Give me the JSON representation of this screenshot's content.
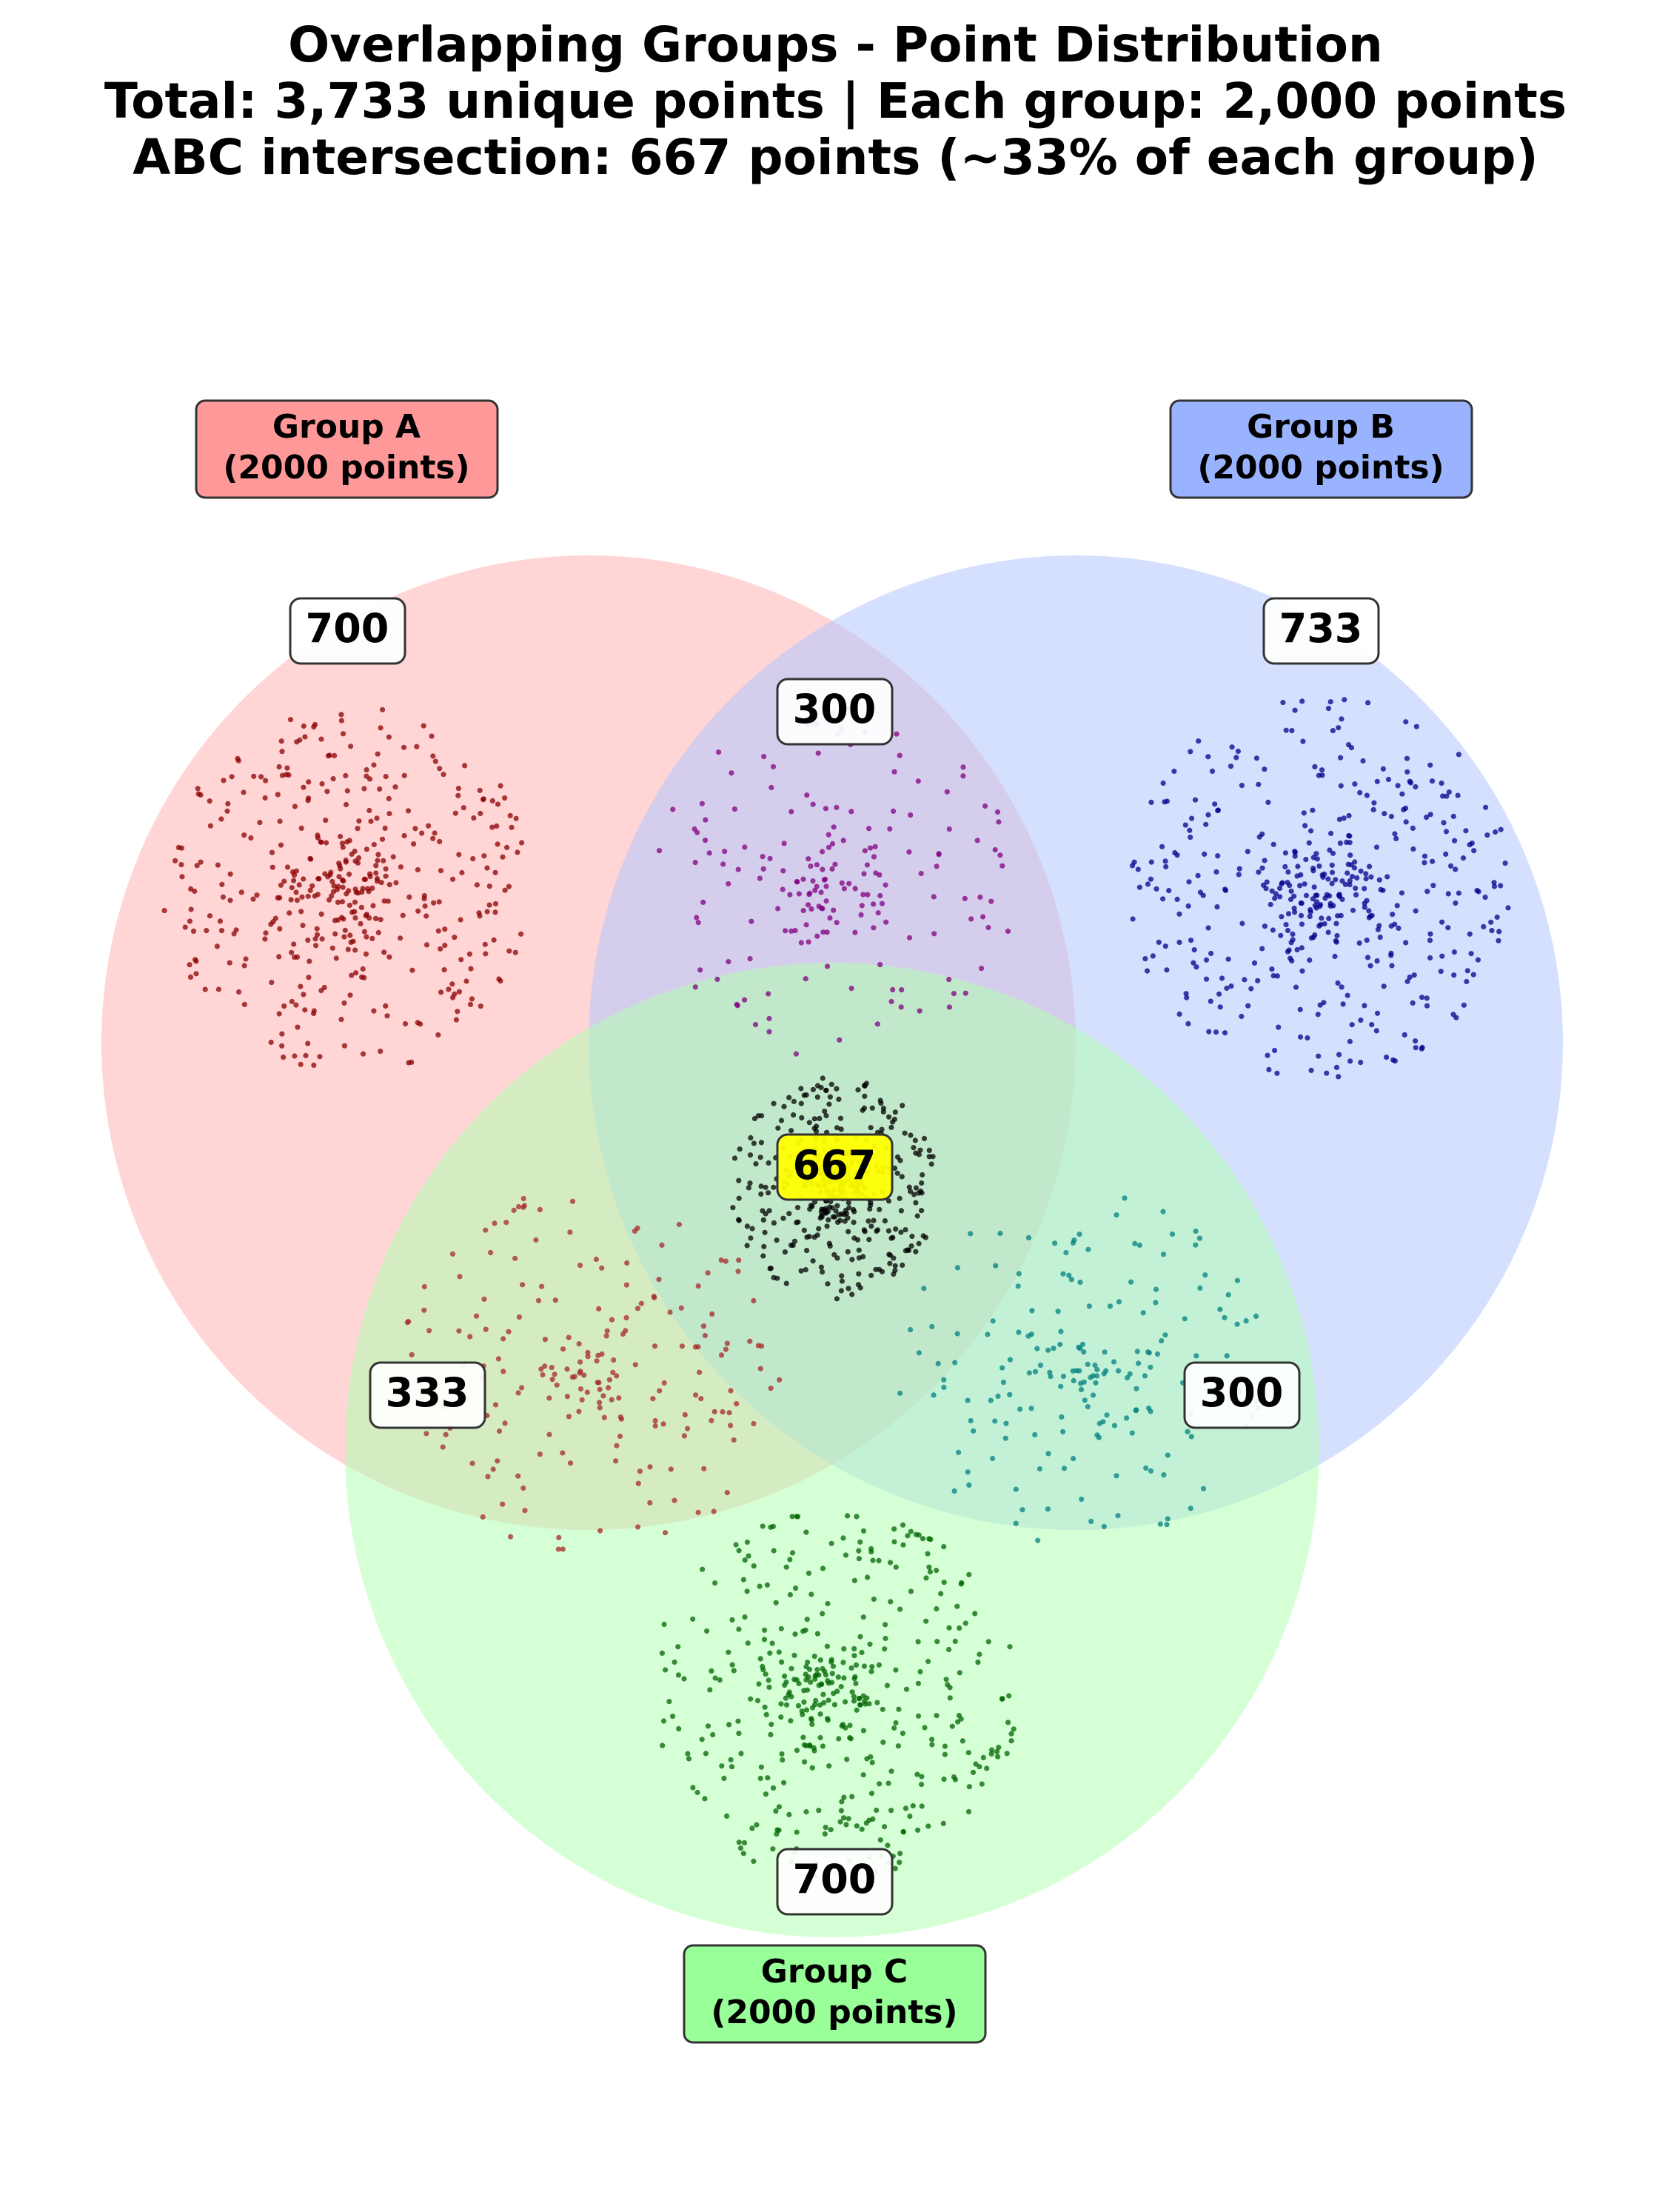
{
  "title": {
    "line1": "Overlapping Groups - Point Distribution",
    "line2": "Total: 3,733 unique points | Each group: 2,000 points",
    "line3": "ABC intersection: 667 points (~33% of each group)"
  },
  "groups": [
    {
      "key": "A",
      "name": "Group A",
      "points_label": "(2000 points)",
      "circle_color": "#ffb3b3",
      "label_color": "#ff9999"
    },
    {
      "key": "B",
      "name": "Group B",
      "points_label": "(2000 points)",
      "circle_color": "#b3c6ff",
      "label_color": "#99b3ff"
    },
    {
      "key": "C",
      "name": "Group C",
      "points_label": "(2000 points)",
      "circle_color": "#b3ffb3",
      "label_color": "#99ff99"
    }
  ],
  "regions": [
    {
      "key": "A_only",
      "label": "700",
      "count": 700,
      "dot_color": "#8b0000"
    },
    {
      "key": "AB_only",
      "label": "300",
      "count": 300,
      "dot_color": "#800080"
    },
    {
      "key": "B_only",
      "label": "733",
      "count": 733,
      "dot_color": "#00008b"
    },
    {
      "key": "ABC",
      "label": "667",
      "count": 667,
      "dot_color": "#000000",
      "highlight_color": "#ffff00"
    },
    {
      "key": "AC_only",
      "label": "333",
      "count": 333,
      "dot_color": "#a52a2a"
    },
    {
      "key": "BC_only",
      "label": "300",
      "count": 300,
      "dot_color": "#008080"
    },
    {
      "key": "C_only",
      "label": "700",
      "count": 700,
      "dot_color": "#006400"
    }
  ]
}
